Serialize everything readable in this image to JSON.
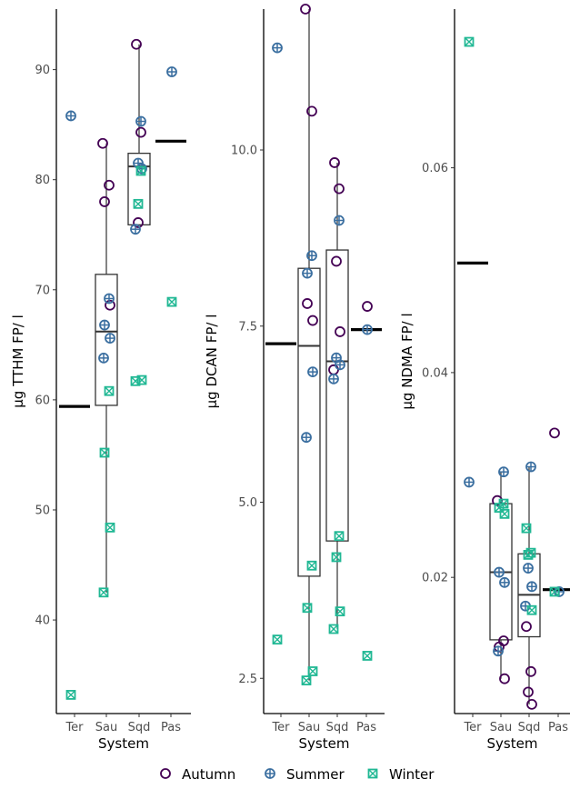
{
  "legend": {
    "items": [
      {
        "name": "Autumn",
        "color": "#440154",
        "marker": "circle-open"
      },
      {
        "name": "Summer",
        "color": "#3b6fa0",
        "marker": "circle-plus"
      },
      {
        "name": "Winter",
        "color": "#21b894",
        "marker": "square-x"
      }
    ]
  },
  "chart_data": [
    {
      "type": "box",
      "xlabel": "System",
      "ylabel": "µg TTHM FP/ l",
      "categories": [
        "Ter",
        "Sau",
        "Sqd",
        "Pas"
      ],
      "ylim": [
        31.5,
        95.5
      ],
      "yticks": [
        40,
        50,
        60,
        70,
        80,
        90
      ],
      "ytick_labels": [
        "40",
        "50",
        "60",
        "70",
        "80",
        "90"
      ],
      "grid": false,
      "boxes": [
        {
          "category": "Ter",
          "median": 59.4
        },
        {
          "category": "Sau",
          "q1": 59.5,
          "median": 66.2,
          "q3": 71.4,
          "whisker_low": 42.5,
          "whisker_high": 83.3
        },
        {
          "category": "Sqd",
          "q1": 75.9,
          "median": 81.2,
          "q3": 82.4,
          "whisker_low": 75.9,
          "whisker_high": 92.3
        },
        {
          "category": "Pas",
          "median": 83.5
        }
      ],
      "series": [
        {
          "name": "Autumn",
          "points": [
            [
              "Sau",
              83.3
            ],
            [
              "Sau",
              79.5
            ],
            [
              "Sau",
              78.0
            ],
            [
              "Sau",
              68.6
            ],
            [
              "Sqd",
              92.3
            ],
            [
              "Sqd",
              84.3
            ],
            [
              "Sqd",
              76.1
            ]
          ]
        },
        {
          "name": "Summer",
          "points": [
            [
              "Ter",
              85.8
            ],
            [
              "Sau",
              69.2
            ],
            [
              "Sau",
              66.8
            ],
            [
              "Sau",
              65.6
            ],
            [
              "Sau",
              63.8
            ],
            [
              "Sqd",
              85.3
            ],
            [
              "Sqd",
              81.5
            ],
            [
              "Sqd",
              81.0
            ],
            [
              "Sqd",
              75.5
            ],
            [
              "Pas",
              89.8
            ]
          ]
        },
        {
          "name": "Winter",
          "points": [
            [
              "Ter",
              33.2
            ],
            [
              "Sau",
              60.8
            ],
            [
              "Sau",
              55.2
            ],
            [
              "Sau",
              48.4
            ],
            [
              "Sau",
              42.5
            ],
            [
              "Sqd",
              80.8
            ],
            [
              "Sqd",
              77.8
            ],
            [
              "Sqd",
              61.8
            ],
            [
              "Sqd",
              61.7
            ],
            [
              "Pas",
              68.9
            ]
          ]
        }
      ]
    },
    {
      "type": "box",
      "xlabel": "System",
      "ylabel": "µg DCAN FP/ l",
      "categories": [
        "Ter",
        "Sau",
        "Sqd",
        "Pas"
      ],
      "ylim": [
        2.0,
        12.0
      ],
      "yticks": [
        2.5,
        5.0,
        7.5,
        10.0
      ],
      "ytick_labels": [
        "2.5",
        "5.0",
        "7.5",
        "10.0"
      ],
      "grid": false,
      "boxes": [
        {
          "category": "Ter",
          "median": 7.25
        },
        {
          "category": "Sau",
          "q1": 3.95,
          "median": 7.22,
          "q3": 8.32,
          "whisker_low": 2.47,
          "whisker_high": 12.0
        },
        {
          "category": "Sqd",
          "q1": 4.45,
          "median": 7.0,
          "q3": 8.58,
          "whisker_low": 3.2,
          "whisker_high": 9.82
        },
        {
          "category": "Pas",
          "median": 7.45
        }
      ],
      "series": [
        {
          "name": "Autumn",
          "points": [
            [
              "Sau",
              12.0
            ],
            [
              "Sau",
              10.55
            ],
            [
              "Sau",
              7.82
            ],
            [
              "Sau",
              7.58
            ],
            [
              "Sqd",
              9.82
            ],
            [
              "Sqd",
              9.45
            ],
            [
              "Sqd",
              8.42
            ],
            [
              "Sqd",
              7.42
            ],
            [
              "Sqd",
              6.88
            ],
            [
              "Pas",
              7.78
            ]
          ]
        },
        {
          "name": "Summer",
          "points": [
            [
              "Ter",
              11.45
            ],
            [
              "Sau",
              8.5
            ],
            [
              "Sau",
              8.25
            ],
            [
              "Sau",
              6.85
            ],
            [
              "Sau",
              5.92
            ],
            [
              "Sqd",
              9.0
            ],
            [
              "Sqd",
              7.05
            ],
            [
              "Sqd",
              6.95
            ],
            [
              "Sqd",
              6.75
            ],
            [
              "Pas",
              7.45
            ]
          ]
        },
        {
          "name": "Winter",
          "points": [
            [
              "Ter",
              3.05
            ],
            [
              "Sau",
              4.1
            ],
            [
              "Sau",
              3.5
            ],
            [
              "Sau",
              2.6
            ],
            [
              "Sau",
              2.47
            ],
            [
              "Sqd",
              4.52
            ],
            [
              "Sqd",
              4.22
            ],
            [
              "Sqd",
              3.45
            ],
            [
              "Sqd",
              3.2
            ],
            [
              "Pas",
              2.82
            ]
          ]
        }
      ]
    },
    {
      "type": "box",
      "xlabel": "System",
      "ylabel": "µg NDMA FP/ l",
      "categories": [
        "Ter",
        "Sau",
        "Sqd",
        "Pas"
      ],
      "ylim": [
        0.0067,
        0.0755
      ],
      "yticks": [
        0.02,
        0.04,
        0.06
      ],
      "ytick_labels": [
        "0.02",
        "0.04",
        "0.06"
      ],
      "grid": false,
      "boxes": [
        {
          "category": "Ter",
          "median": 0.0507
        },
        {
          "category": "Sau",
          "q1": 0.0139,
          "median": 0.0205,
          "q3": 0.0272,
          "whisker_low": 0.0101,
          "whisker_high": 0.0303
        },
        {
          "category": "Sqd",
          "q1": 0.0142,
          "median": 0.0183,
          "q3": 0.0223,
          "whisker_low": 0.0076,
          "whisker_high": 0.0308
        },
        {
          "category": "Pas",
          "median": 0.0188
        }
      ],
      "series": [
        {
          "name": "Autumn",
          "points": [
            [
              "Sau",
              0.0275
            ],
            [
              "Sau",
              0.0138
            ],
            [
              "Sau",
              0.0132
            ],
            [
              "Sau",
              0.0101
            ],
            [
              "Sqd",
              0.0152
            ],
            [
              "Sqd",
              0.0108
            ],
            [
              "Sqd",
              0.0088
            ],
            [
              "Sqd",
              0.0076
            ],
            [
              "Pas",
              0.0341
            ]
          ]
        },
        {
          "name": "Summer",
          "points": [
            [
              "Ter",
              0.0293
            ],
            [
              "Sau",
              0.0303
            ],
            [
              "Sau",
              0.0205
            ],
            [
              "Sau",
              0.0195
            ],
            [
              "Sau",
              0.0128
            ],
            [
              "Sqd",
              0.0308
            ],
            [
              "Sqd",
              0.0209
            ],
            [
              "Sqd",
              0.0191
            ],
            [
              "Sqd",
              0.0172
            ],
            [
              "Pas",
              0.0186
            ]
          ]
        },
        {
          "name": "Winter",
          "points": [
            [
              "Ter",
              0.0723
            ],
            [
              "Sau",
              0.0272
            ],
            [
              "Sau",
              0.0268
            ],
            [
              "Sau",
              0.0262
            ],
            [
              "Sqd",
              0.0248
            ],
            [
              "Sqd",
              0.0224
            ],
            [
              "Sqd",
              0.0222
            ],
            [
              "Sqd",
              0.0168
            ],
            [
              "Pas",
              0.0186
            ]
          ]
        }
      ]
    }
  ]
}
